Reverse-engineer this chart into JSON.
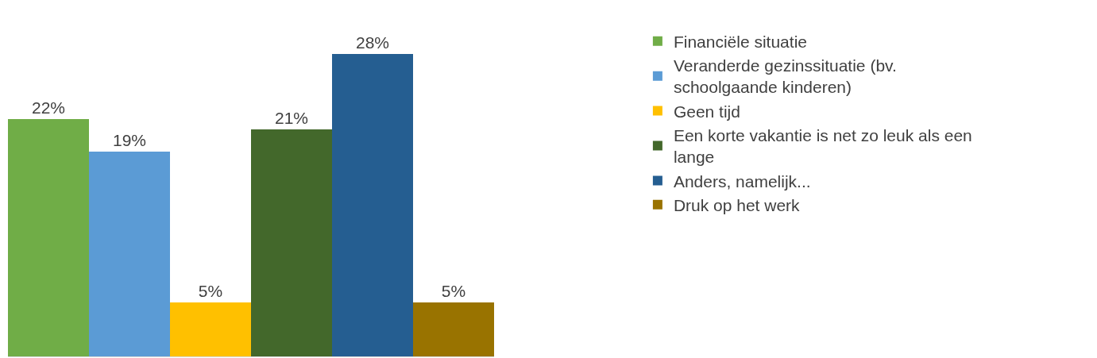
{
  "chart_data": {
    "type": "bar",
    "categories": [
      null
    ],
    "legend": "right",
    "series": [
      {
        "name": "Financiële situatie",
        "color": "#70ad47",
        "values": [
          22
        ],
        "value_labels": [
          "22%"
        ]
      },
      {
        "name": "Veranderde gezinssituatie (bv. schoolgaande kinderen)",
        "color": "#5b9bd5",
        "values": [
          19
        ],
        "value_labels": [
          "19%"
        ]
      },
      {
        "name": "Geen tijd",
        "color": "#ffc000",
        "values": [
          5
        ],
        "value_labels": [
          "5%"
        ]
      },
      {
        "name": "Een korte vakantie is net zo leuk als een lange",
        "color": "#43682b",
        "values": [
          21
        ],
        "value_labels": [
          "21%"
        ]
      },
      {
        "name": "Anders, namelijk...",
        "color": "#255e91",
        "values": [
          28
        ],
        "value_labels": [
          "28%"
        ]
      },
      {
        "name": "Druk op het werk",
        "color": "#997300",
        "values": [
          5
        ],
        "value_labels": [
          "5%"
        ]
      }
    ]
  }
}
